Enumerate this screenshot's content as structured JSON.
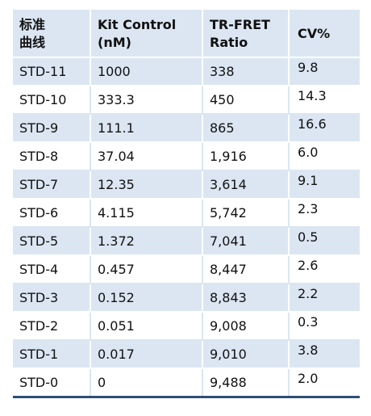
{
  "table": {
    "headers": [
      [
        "标准",
        "曲线"
      ],
      [
        "Kit Control",
        "(nM)"
      ],
      [
        "TR-FRET",
        "Ratio"
      ],
      [
        "CV%"
      ]
    ],
    "rows": [
      [
        "STD-11",
        "1000",
        "338",
        "9.8"
      ],
      [
        "STD-10",
        "333.3",
        "450",
        "14.3"
      ],
      [
        "STD-9",
        "111.1",
        "865",
        "16.6"
      ],
      [
        "STD-8",
        "37.04",
        "1,916",
        "6.0"
      ],
      [
        "STD-7",
        "12.35",
        "3,614",
        "9.1"
      ],
      [
        "STD-6",
        "4.115",
        "5,742",
        "2.3"
      ],
      [
        "STD-5",
        "1.372",
        "7,041",
        "0.5"
      ],
      [
        "STD-4",
        "0.457",
        "8,447",
        "2.6"
      ],
      [
        "STD-3",
        "0.152",
        "8,843",
        "2.2"
      ],
      [
        "STD-2",
        "0.051",
        "9,008",
        "0.3"
      ],
      [
        "STD-1",
        "0.017",
        "9,010",
        "3.8"
      ],
      [
        "STD-0",
        "0",
        "9,488",
        "2.0"
      ]
    ]
  },
  "colors": {
    "header_bg": "#dbe6f2",
    "stripe_bg": "#dbe6f2",
    "bottom_rule": "#2f4f74"
  }
}
